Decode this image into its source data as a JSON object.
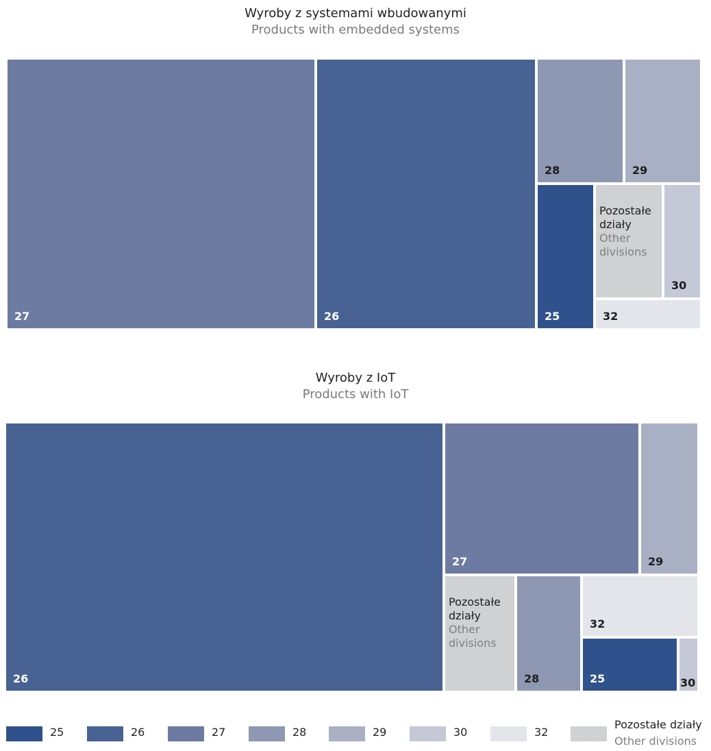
{
  "legend": {
    "items": [
      {
        "label": "25",
        "color": "#30528c"
      },
      {
        "label": "26",
        "color": "#486293"
      },
      {
        "label": "27",
        "color": "#6d7ba2"
      },
      {
        "label": "28",
        "color": "#8e98b2"
      },
      {
        "label": "29",
        "color": "#aab0c4"
      },
      {
        "label": "30",
        "color": "#c5c8d6"
      },
      {
        "label": "32",
        "color": "#e4e5eb"
      }
    ],
    "other": {
      "label_pl": "Pozostałe działy",
      "label_en": "Other divisions",
      "color": "#d0d1d3"
    }
  },
  "other_tile_label": {
    "pl": "Pozostałe\ndziały",
    "en": "Other\ndivisions"
  },
  "chart_data": [
    {
      "type": "treemap",
      "title": "Wyroby z systemami wbudowanymi",
      "subtitle": "Products with embedded systems",
      "categories": [
        "27",
        "26",
        "28",
        "29",
        "25",
        "Pozostałe działy",
        "30",
        "32"
      ],
      "values": [
        43.5,
        31.0,
        5.7,
        5.0,
        4.4,
        4.1,
        2.3,
        1.7
      ],
      "colors": [
        "#6d7ba2",
        "#486293",
        "#8e98b2",
        "#aab0c4",
        "#30528c",
        "#d0d1d3",
        "#c5c8d6",
        "#e4e5eb"
      ]
    },
    {
      "type": "treemap",
      "title": "Wyroby z IoT",
      "subtitle": "Products with IoT",
      "categories": [
        "26",
        "27",
        "29",
        "Pozostałe działy",
        "28",
        "32",
        "25",
        "30"
      ],
      "values": [
        63.3,
        16.0,
        4.8,
        4.5,
        4.1,
        3.9,
        2.8,
        0.6
      ],
      "colors": [
        "#486293",
        "#6d7ba2",
        "#aab0c4",
        "#d0d1d3",
        "#8e98b2",
        "#e4e5eb",
        "#30528c",
        "#c5c8d6"
      ]
    }
  ]
}
